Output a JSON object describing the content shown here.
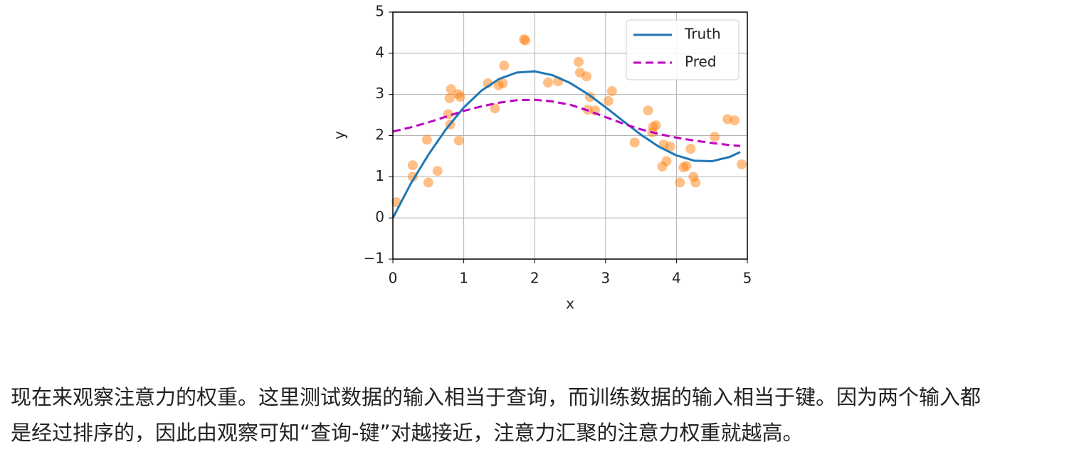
{
  "chart_data": {
    "type": "line",
    "xlabel": "x",
    "ylabel": "y",
    "xlim": [
      0,
      5
    ],
    "ylim": [
      -1,
      5
    ],
    "xticks": [
      0,
      1,
      2,
      3,
      4,
      5
    ],
    "yticks": [
      {
        "value": -1,
        "label": "−1"
      },
      0,
      1,
      2,
      3,
      4,
      5
    ],
    "grid": true,
    "legend": "upper right",
    "x": [
      0,
      0.25,
      0.5,
      0.75,
      1,
      1.25,
      1.5,
      1.75,
      2,
      2.25,
      2.5,
      2.75,
      3,
      3.25,
      3.5,
      3.75,
      4,
      4.25,
      4.5,
      4.75,
      4.9
    ],
    "series": [
      {
        "name": "Truth",
        "color": "#1f77b4",
        "dash": false,
        "values": [
          0,
          0.825,
          1.533,
          2.158,
          2.683,
          3.093,
          3.378,
          3.533,
          3.56,
          3.469,
          3.278,
          3.009,
          2.69,
          2.351,
          2.021,
          1.733,
          1.518,
          1.391,
          1.377,
          1.481,
          1.601
        ]
      },
      {
        "name": "Pred",
        "color": "#bf00bf",
        "dash": true,
        "values": [
          2.1,
          2.2,
          2.32,
          2.46,
          2.6,
          2.71,
          2.8,
          2.86,
          2.87,
          2.83,
          2.75,
          2.61,
          2.45,
          2.29,
          2.15,
          2.04,
          1.95,
          1.88,
          1.82,
          1.77,
          1.75
        ]
      }
    ],
    "scatter": {
      "color": "#ff7f0e",
      "x": [
        0.05,
        0.28,
        0.28,
        0.48,
        0.5,
        0.63,
        0.82,
        0.8,
        0.78,
        0.81,
        0.92,
        0.95,
        0.93,
        1.34,
        1.44,
        1.49,
        1.55,
        1.57,
        1.85,
        1.87,
        2.19,
        2.33,
        2.62,
        2.64,
        2.73,
        2.78,
        2.75,
        2.85,
        3.04,
        3.09,
        3.41,
        3.6,
        3.66,
        3.67,
        3.71,
        3.8,
        3.82,
        3.86,
        3.91,
        4.05,
        4.1,
        4.14,
        4.2,
        4.24,
        4.27,
        4.54,
        4.72,
        4.82,
        4.92
      ],
      "values": [
        0.38,
        1.28,
        1.0,
        1.9,
        0.86,
        1.14,
        3.13,
        2.91,
        2.52,
        2.27,
        3.01,
        2.94,
        1.88,
        3.27,
        2.66,
        3.22,
        3.27,
        3.7,
        4.34,
        4.31,
        3.29,
        3.32,
        3.79,
        3.53,
        3.44,
        2.94,
        2.63,
        2.61,
        2.84,
        3.08,
        1.83,
        2.61,
        2.08,
        2.21,
        2.25,
        1.25,
        1.78,
        1.38,
        1.73,
        0.86,
        1.23,
        1.26,
        1.68,
        1.0,
        0.86,
        1.97,
        2.4,
        2.37,
        1.3
      ]
    }
  },
  "paragraph": [
    "现在来观察注意力的权重。这里测试数据的输入相当于查询，而训练数据的输入相当于键。因为两个输入都",
    "是经过排序的，因此由观察可知“查询-键”对越接近，注意力汇聚的注意力权重就越高。"
  ]
}
